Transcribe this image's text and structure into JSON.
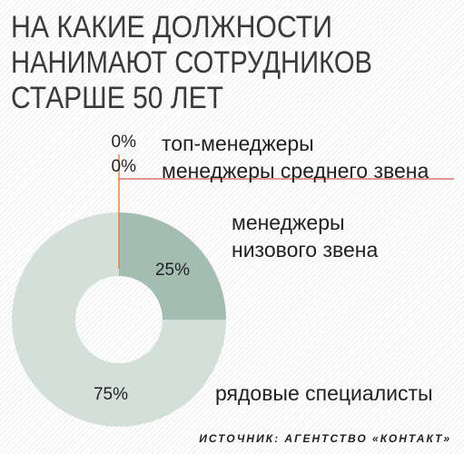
{
  "chart_data": {
    "type": "pie",
    "title": [
      "НА КАКИЕ ДОЛЖНОСТИ",
      "НАНИМАЮТ СОТРУДНИКОВ",
      "СТАРШЕ 50 ЛЕТ"
    ],
    "categories": [
      "топ-менеджеры",
      "менеджеры среднего звена",
      "менеджеры низового звена",
      "рядовые специалисты"
    ],
    "values": [
      0,
      0,
      25,
      75
    ],
    "value_labels": [
      "0%",
      "0%",
      "25%",
      "75%"
    ],
    "colors": [
      "#e8823a",
      "#e0736c",
      "#a3bdb2",
      "#d3e0da"
    ],
    "source": "ИСТОЧНИК: АГЕНТСТВО «КОНТАКТ»"
  }
}
